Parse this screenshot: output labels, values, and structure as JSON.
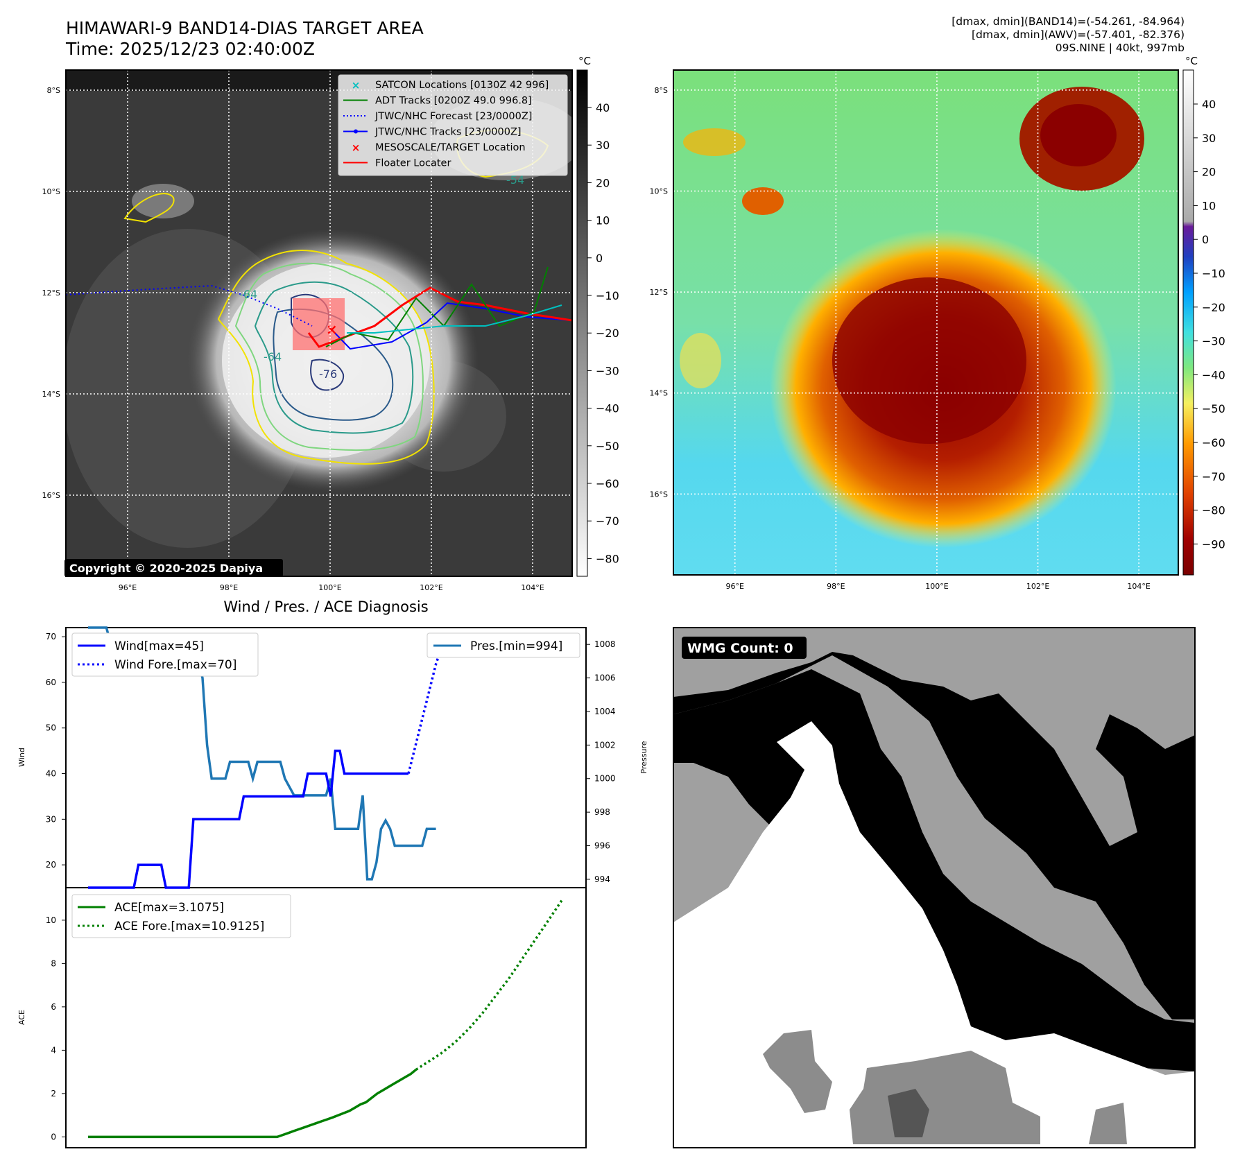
{
  "header": {
    "title_line1": "HIMAWARI-9 BAND14-DIAS TARGET AREA",
    "title_line2": "Time: 2025/12/23 02:40:00Z",
    "info_line1": "[dmax, dmin](BAND14)=(-54.261, -84.964)",
    "info_line2": "[dmax, dmin](AWV)=(-57.401, -82.376)",
    "info_line3": "09S.NINE | 40kt, 997mb"
  },
  "map_axes": {
    "lat_labels": [
      "8°S",
      "10°S",
      "12°S",
      "14°S",
      "16°S"
    ],
    "lon_labels": [
      "96°E",
      "98°E",
      "100°E",
      "102°E",
      "104°E"
    ]
  },
  "ir_map": {
    "legend": [
      {
        "label": "SATCON Locations [0130Z 42 996]",
        "marker": "x",
        "color": "#00bfbf"
      },
      {
        "label": "ADT Tracks [0200Z 49.0 996.8]",
        "marker": "line",
        "color": "#008000"
      },
      {
        "label": "JTWC/NHC Forecast [23/0000Z]",
        "marker": "dotted",
        "color": "#0000ff"
      },
      {
        "label": "JTWC/NHC Tracks [23/0000Z]",
        "marker": "line-dot",
        "color": "#0000ff"
      },
      {
        "label": "MESOSCALE/TARGET Location",
        "marker": "x",
        "color": "#ff0000"
      },
      {
        "label": "Floater Locater",
        "marker": "line",
        "color": "#ff0000"
      }
    ],
    "contour_labels": [
      "-64",
      "-76",
      "-64",
      "-54"
    ],
    "copyright": "Copyright © 2020-2025 Dapiya",
    "colorbar_unit": "°C",
    "colorbar_ticks": [
      "40",
      "30",
      "20",
      "10",
      "0",
      "−10",
      "−20",
      "−30",
      "−40",
      "−50",
      "−60",
      "−70",
      "−80"
    ]
  },
  "color_map": {
    "colorbar_unit": "°C",
    "colorbar_ticks": [
      "40",
      "30",
      "20",
      "10",
      "0",
      "−10",
      "−20",
      "−30",
      "−40",
      "−50",
      "−60",
      "−70",
      "−80",
      "−90"
    ]
  },
  "diagnosis": {
    "title": "Wind / Pres. / ACE Diagnosis",
    "wind_ylabel": "Wind",
    "pres_ylabel": "Pressure",
    "ace_ylabel": "ACE",
    "wind_legend": [
      "Wind[max=45]",
      "Wind Fore.[max=70]"
    ],
    "pres_legend": [
      "Pres.[min=994]"
    ],
    "ace_legend": [
      "ACE[max=3.1075]",
      "ACE Fore.[max=10.9125]"
    ],
    "wind_ticks": [
      "20",
      "30",
      "40",
      "50",
      "60",
      "70"
    ],
    "pres_ticks": [
      "994",
      "996",
      "998",
      "1000",
      "1002",
      "1004",
      "1006",
      "1008"
    ],
    "ace_ticks": [
      "0",
      "2",
      "4",
      "6",
      "8",
      "10"
    ]
  },
  "wmg": {
    "label": "WMG Count: 0"
  },
  "chart_data": [
    {
      "type": "line",
      "title": "Wind / Pres. / ACE Diagnosis",
      "ylabel": "Wind",
      "ylim": [
        15,
        72
      ],
      "y2label": "Pressure",
      "y2lim": [
        993.5,
        1009
      ],
      "series": [
        {
          "name": "Wind[max=45]",
          "axis": "left",
          "color": "#0000ff",
          "style": "solid",
          "values": [
            15,
            15,
            15,
            15,
            15,
            15,
            15,
            15,
            15,
            15,
            15,
            20,
            20,
            20,
            20,
            20,
            20,
            15,
            15,
            15,
            15,
            15,
            15,
            30,
            30,
            30,
            30,
            30,
            30,
            30,
            30,
            30,
            30,
            30,
            35,
            35,
            35,
            35,
            35,
            35,
            35,
            35,
            35,
            35,
            35,
            35,
            35,
            35,
            40,
            40,
            40,
            40,
            40,
            35,
            45,
            45,
            40,
            40,
            40,
            40,
            40,
            40,
            40,
            40,
            40,
            40,
            40,
            40,
            40,
            40,
            40
          ]
        },
        {
          "name": "Wind Fore.[max=70]",
          "axis": "left",
          "color": "#0000ff",
          "style": "dotted",
          "values": [
            40,
            44,
            48,
            52,
            56,
            60,
            64,
            67,
            70,
            70,
            70,
            70,
            70,
            70,
            70,
            70
          ]
        },
        {
          "name": "Pres.[min=994]",
          "axis": "right",
          "color": "#1f77b4",
          "style": "solid",
          "values": [
            1009,
            1009,
            1009,
            1009,
            1009,
            1008,
            1008,
            1008,
            1008,
            1008,
            1008,
            1008,
            1008,
            1008,
            1007,
            1007,
            1007,
            1007,
            1007.3,
            1007.3,
            1007.3,
            1007.3,
            1007.3,
            1007.3,
            1007,
            1006,
            1002,
            1000,
            1000,
            1000,
            1000,
            1001,
            1001,
            1001,
            1001,
            1001,
            1000,
            1001,
            1001,
            1001,
            1001,
            1001,
            1001,
            1000,
            999.5,
            999,
            999,
            999,
            999,
            999,
            999,
            999,
            999,
            1000,
            997,
            997,
            997,
            997,
            997,
            997,
            999,
            994,
            994,
            995,
            997,
            997.5,
            997,
            996,
            996,
            996,
            996,
            996,
            996,
            996,
            997,
            997,
            997
          ]
        }
      ]
    },
    {
      "type": "line",
      "ylabel": "ACE",
      "ylim": [
        -0.5,
        11.5
      ],
      "series": [
        {
          "name": "ACE[max=3.1075]",
          "color": "#008000",
          "style": "solid",
          "values": [
            0,
            0,
            0,
            0,
            0,
            0,
            0,
            0,
            0,
            0,
            0,
            0,
            0,
            0,
            0,
            0,
            0,
            0,
            0,
            0,
            0,
            0,
            0,
            0,
            0,
            0,
            0,
            0,
            0,
            0,
            0,
            0,
            0,
            0,
            0,
            0.09,
            0.18,
            0.27,
            0.36,
            0.45,
            0.54,
            0.63,
            0.72,
            0.81,
            0.9,
            1.0,
            1.1,
            1.2,
            1.35,
            1.5,
            1.6,
            1.8,
            2.0,
            2.15,
            2.3,
            2.45,
            2.6,
            2.75,
            2.9,
            3.1075
          ]
        },
        {
          "name": "ACE Fore.[max=10.9125]",
          "color": "#008000",
          "style": "dotted",
          "values": [
            3.1075,
            3.5,
            3.9,
            4.4,
            5.0,
            5.7,
            6.5,
            7.3,
            8.2,
            9.1,
            10.0,
            10.9125
          ]
        }
      ]
    }
  ]
}
